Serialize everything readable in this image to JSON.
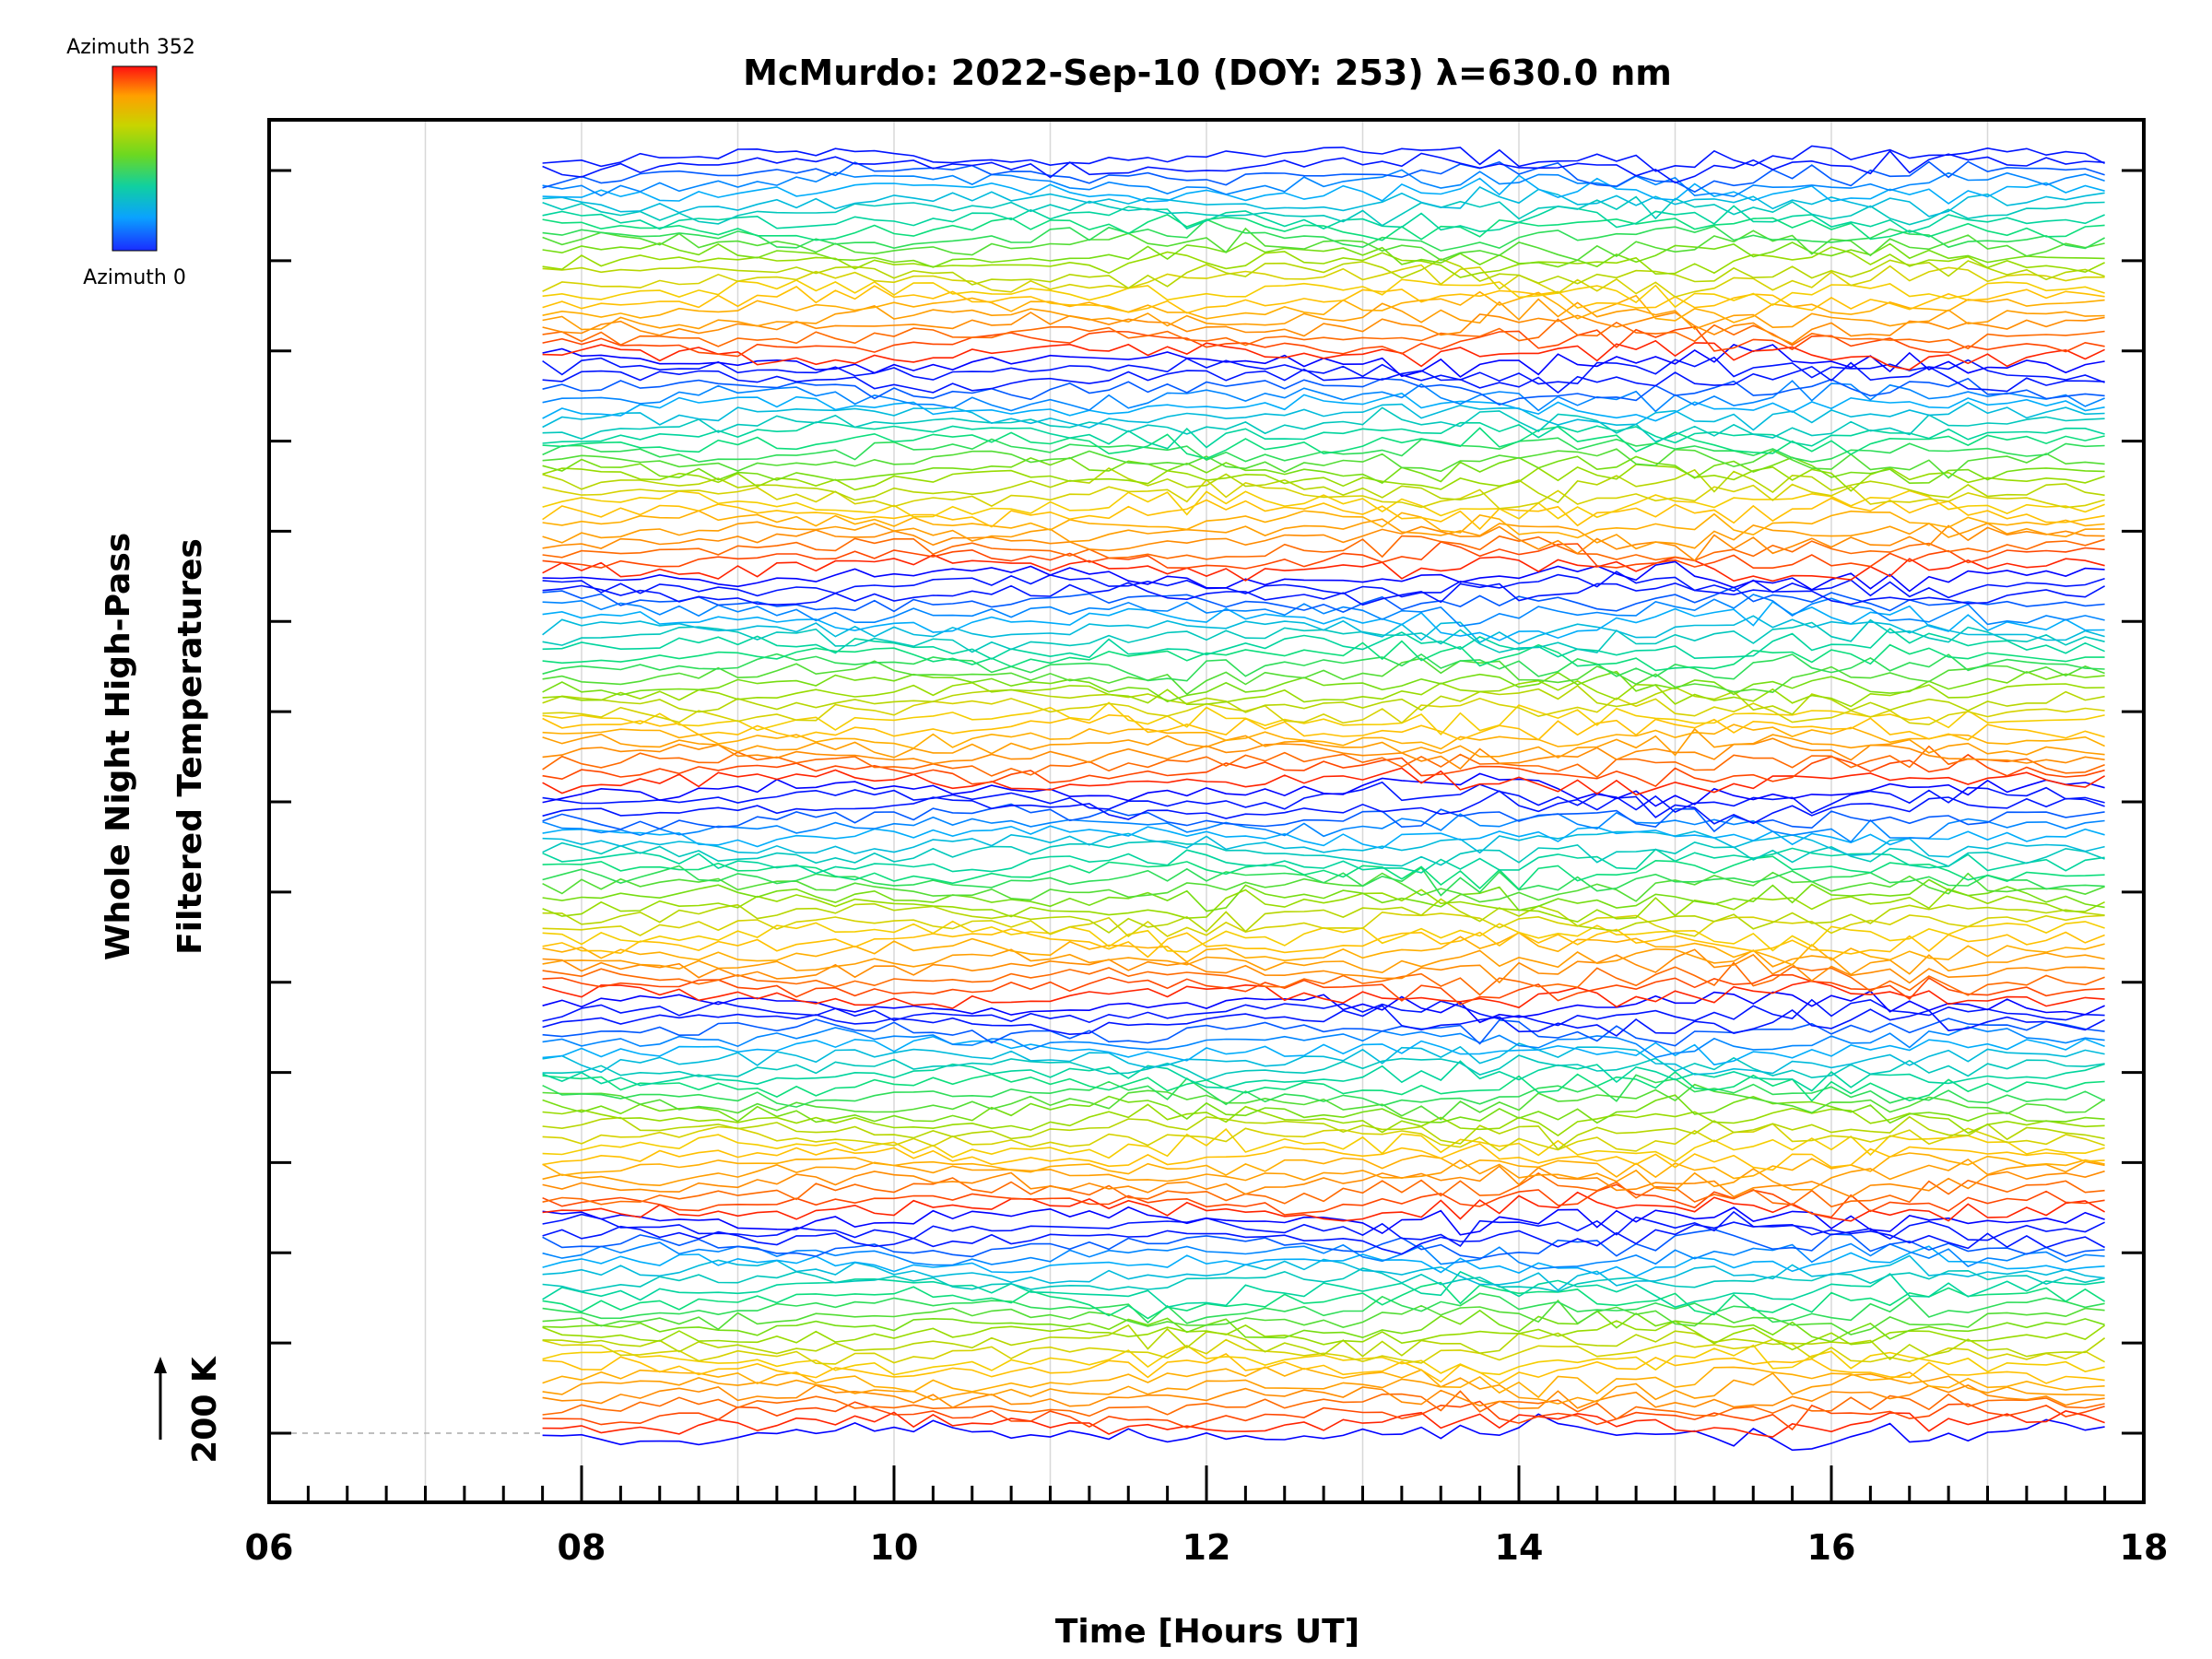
{
  "chart_data": {
    "type": "line",
    "title": "McMurdo: 2022-Sep-10 (DOY: 253) λ=630.0 nm",
    "xlabel": "Time [Hours UT]",
    "ylabel_line1": "Whole Night High-Pass",
    "ylabel_line2": "Filtered Temperatures",
    "scale_label": "200 K",
    "xlim": [
      6,
      18
    ],
    "x_tick_labels": [
      "06",
      "08",
      "10",
      "12",
      "14",
      "16",
      "18"
    ],
    "x_ticks": [
      6,
      8,
      10,
      12,
      14,
      16,
      18
    ],
    "data_start_hour": 7.75,
    "data_end_hour": 17.75,
    "colorbar": {
      "top_label": "Azimuth 352",
      "bottom_label": "Azimuth 0",
      "colors": [
        "#0000ff",
        "#00aaff",
        "#00dd88",
        "#88dd00",
        "#ffcc00",
        "#ff8800",
        "#ff0000"
      ]
    },
    "azimuth_groups": 6,
    "traces_per_group": 24,
    "grid": true
  }
}
